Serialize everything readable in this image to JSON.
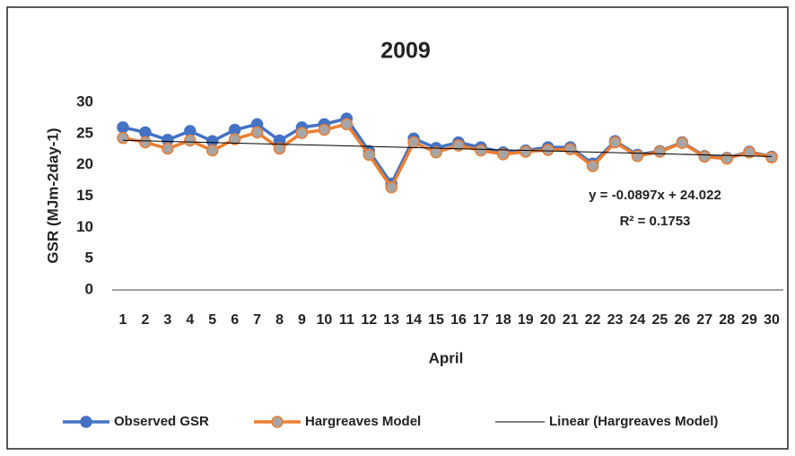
{
  "chart_data": {
    "type": "line",
    "title": "2009",
    "x_label": "April",
    "y_label": "GSR (MJm-2day-1)",
    "categories": [
      1,
      2,
      3,
      4,
      5,
      6,
      7,
      8,
      9,
      10,
      11,
      12,
      13,
      14,
      15,
      16,
      17,
      18,
      19,
      20,
      21,
      22,
      23,
      24,
      25,
      26,
      27,
      28,
      29,
      30
    ],
    "series": [
      {
        "name": "Observed GSR",
        "color": "#4472c4",
        "marker_fill": "#4472c4",
        "values": [
          26,
          25.2,
          24,
          25.4,
          23.8,
          25.6,
          26.5,
          23.9,
          26,
          26.5,
          27.4,
          22.2,
          17,
          24.2,
          22.7,
          23.6,
          22.8,
          22,
          22.3,
          22.8,
          22.8,
          20.2,
          23.8,
          21.6,
          22.2,
          23.6,
          21.4,
          21.1,
          22.1,
          21.3
        ]
      },
      {
        "name": "Hargreaves Model",
        "color": "#ed7d31",
        "marker_fill": "#a5a5a5",
        "values": [
          24.3,
          23.6,
          22.6,
          23.9,
          22.3,
          24.1,
          25.2,
          22.6,
          25.1,
          25.6,
          26.5,
          21.6,
          16.4,
          23.6,
          22,
          23.1,
          22.3,
          21.7,
          22.1,
          22.4,
          22.5,
          19.8,
          23.6,
          21.4,
          22.1,
          23.5,
          21.3,
          21,
          22,
          21.2
        ]
      }
    ],
    "trendline": {
      "name": "Linear (Hargreaves Model)",
      "color": "#000000",
      "slope": -0.0897,
      "intercept": 24.022,
      "equation": "y = -0.0897x + 24.022",
      "r_squared": "R² = 0.1753"
    },
    "ylim": [
      0,
      30
    ],
    "yticks": [
      0,
      5,
      10,
      15,
      20,
      25,
      30
    ],
    "grid": false,
    "legend": "bottom"
  }
}
